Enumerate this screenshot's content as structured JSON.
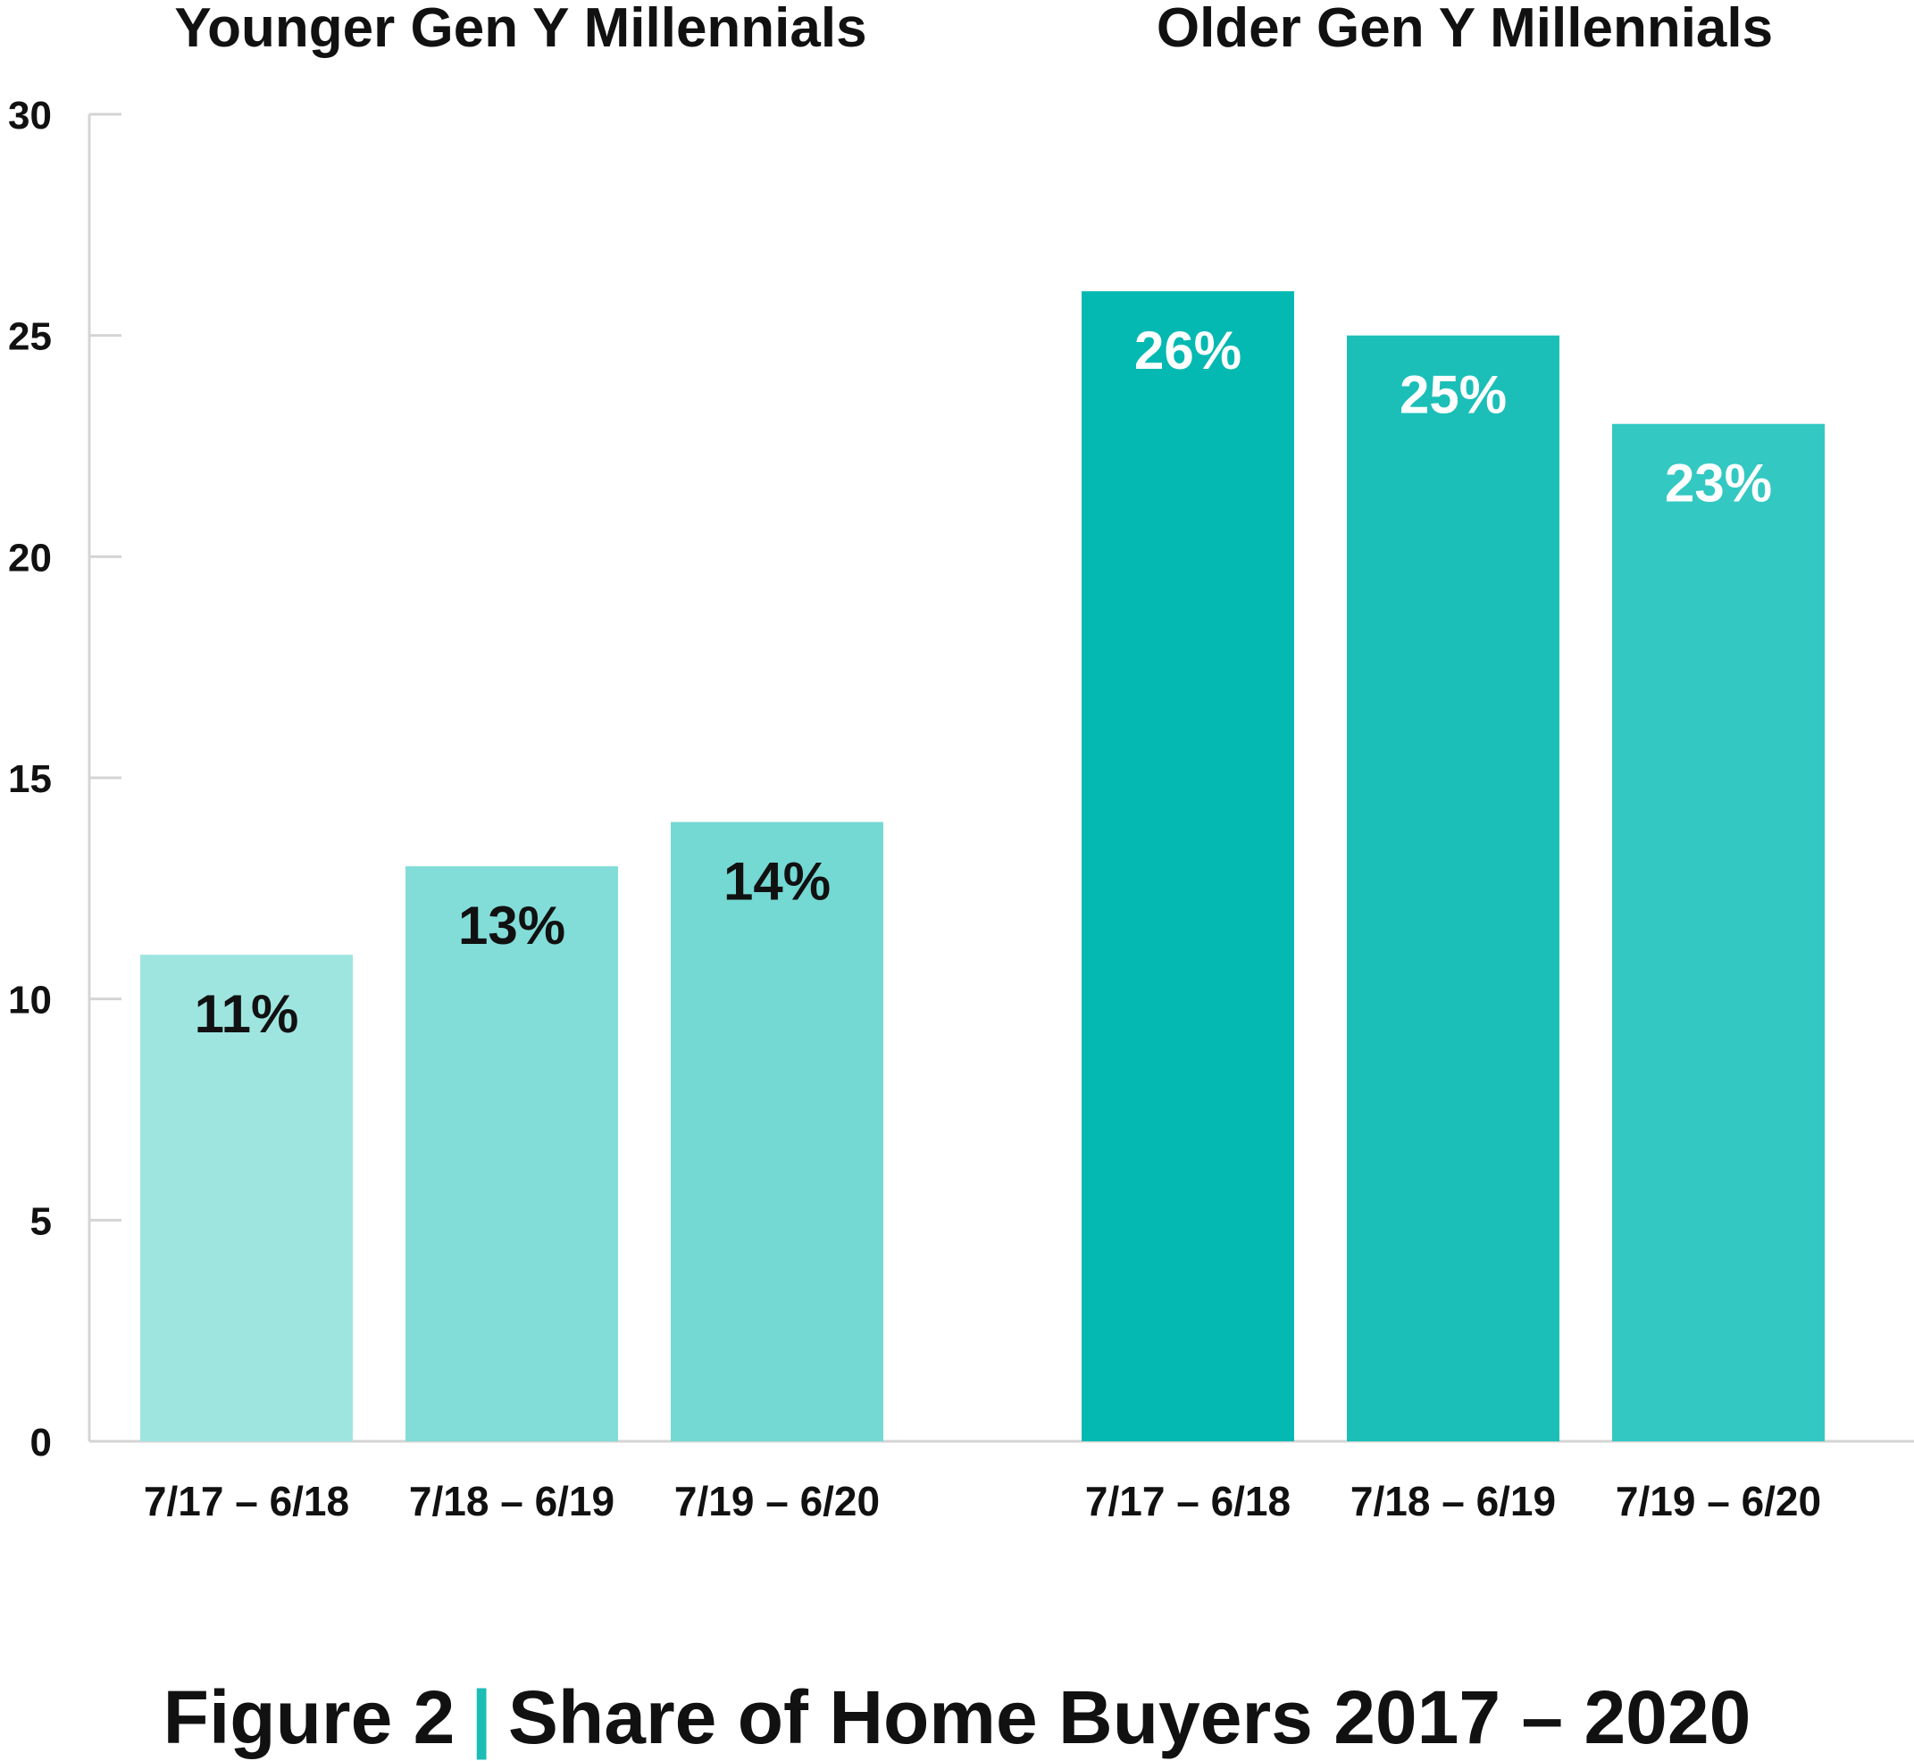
{
  "chart_data": {
    "type": "bar",
    "groups": [
      {
        "title": "Younger Gen Y Millennials",
        "categories": [
          "7/17 – 6/18",
          "7/18 – 6/19",
          "7/19 – 6/20"
        ],
        "values": [
          11,
          13,
          14
        ],
        "labels": [
          "11%",
          "13%",
          "14%"
        ],
        "colors": [
          "#9ee5e0",
          "#82ddd8",
          "#74d8d3"
        ],
        "label_color": "#111111"
      },
      {
        "title": "Older Gen Y Millennials",
        "categories": [
          "7/17 – 6/18",
          "7/18 – 6/19",
          "7/19 – 6/20"
        ],
        "values": [
          26,
          25,
          23
        ],
        "labels": [
          "26%",
          "25%",
          "23%"
        ],
        "colors": [
          "#04b9b2",
          "#1bbfb8",
          "#33c8c2"
        ],
        "label_color": "#ffffff"
      }
    ],
    "ylim": [
      0,
      30
    ],
    "yticks": [
      "0",
      "5",
      "10",
      "15",
      "20",
      "25",
      "30"
    ],
    "grid": false
  },
  "caption": {
    "figure": "Figure 2",
    "separator": "|",
    "title": "Share of Home Buyers 2017 – 2020"
  }
}
